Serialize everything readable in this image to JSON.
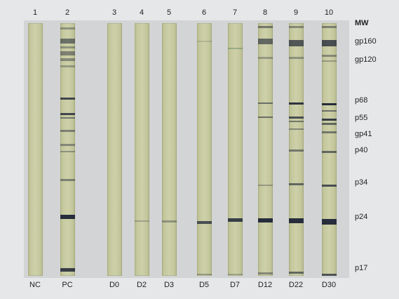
{
  "lane_numbers": [
    "1",
    "2",
    "3",
    "4",
    "5",
    "6",
    "7",
    "8",
    "9",
    "10"
  ],
  "conditions": [
    "NC",
    "PC",
    "D0",
    "D2",
    "D3",
    "D5",
    "D7",
    "D12",
    "D22",
    "D30"
  ],
  "mw_header": "MW",
  "markers": [
    "gp160",
    "gp120",
    "p68",
    "p55",
    "gp41",
    "p40",
    "p34",
    "p24",
    "p17"
  ]
}
